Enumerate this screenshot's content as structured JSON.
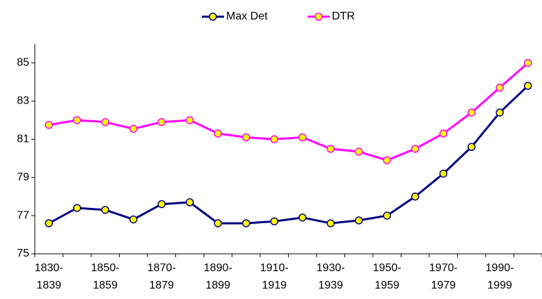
{
  "chart_data": {
    "type": "line",
    "categories": [
      "1830-1839",
      null,
      "1850-1859",
      null,
      "1870-1879",
      null,
      "1890-1899",
      null,
      "1910-1919",
      null,
      "1930-1939",
      null,
      "1950-1959",
      null,
      "1970-1979",
      null,
      "1990-1999",
      null
    ],
    "series": [
      {
        "name": "Max Det",
        "color": "#000080",
        "values": [
          76.6,
          77.4,
          77.3,
          76.8,
          77.6,
          77.7,
          76.6,
          76.6,
          76.7,
          76.9,
          76.6,
          76.75,
          77.0,
          78.0,
          79.2,
          80.6,
          82.4,
          83.8
        ]
      },
      {
        "name": "DTR",
        "color": "#ff00ff",
        "values": [
          81.75,
          82.0,
          81.9,
          81.55,
          81.9,
          82.0,
          81.3,
          81.1,
          81.0,
          81.1,
          80.5,
          80.35,
          79.9,
          80.5,
          81.3,
          82.4,
          83.7,
          85.0
        ]
      }
    ],
    "marker_color": "#ffff00",
    "ylim": [
      75,
      86
    ],
    "yticks": [
      75,
      77,
      79,
      81,
      83,
      85
    ],
    "grid": false,
    "legend": "top"
  }
}
